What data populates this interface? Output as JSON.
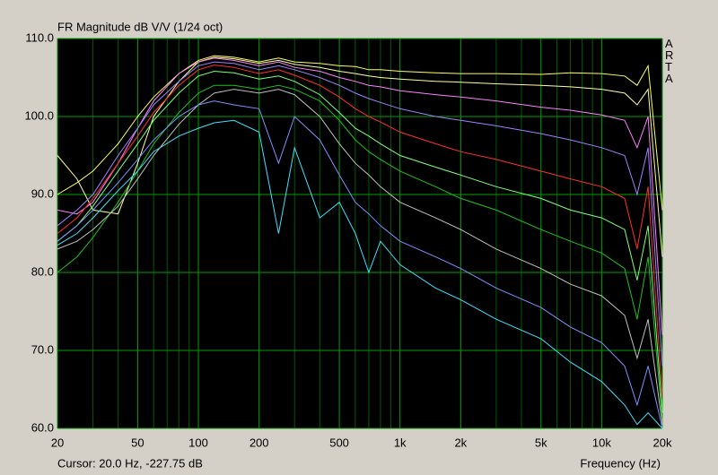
{
  "chart_data": {
    "type": "line",
    "title": "FR Magnitude dB V/V (1/24 oct)",
    "side_label": "ARTA",
    "xlabel": "Frequency (Hz)",
    "cursor": "Cursor: 20.0 Hz, -227.75 dB",
    "xscale": "log",
    "grid": true,
    "xlim": [
      20,
      20000
    ],
    "ylim": [
      60,
      110
    ],
    "xticks": [
      20,
      50,
      100,
      200,
      500,
      {
        "value": 1000,
        "label": "1k"
      },
      {
        "value": 2000,
        "label": "2k"
      },
      {
        "value": 5000,
        "label": "5k"
      },
      {
        "value": 10000,
        "label": "10k"
      },
      {
        "value": 20000,
        "label": "20k"
      }
    ],
    "xminor_ticks": [
      30,
      40,
      60,
      70,
      80,
      90,
      300,
      400,
      600,
      700,
      800,
      900,
      3000,
      4000,
      6000,
      7000,
      8000,
      9000
    ],
    "yticks": [
      {
        "value": 60,
        "label": "60.0"
      },
      {
        "value": 70,
        "label": "70.0"
      },
      {
        "value": 80,
        "label": "80.0"
      },
      {
        "value": 90,
        "label": "90.0"
      },
      {
        "value": 100,
        "label": "100.0"
      },
      {
        "value": 110,
        "label": "110.0"
      }
    ],
    "x": [
      20,
      25,
      30,
      40,
      50,
      60,
      80,
      100,
      120,
      150,
      200,
      250,
      300,
      400,
      500,
      600,
      700,
      800,
      1000,
      1500,
      2000,
      3000,
      5000,
      7000,
      10000,
      13000,
      15000,
      17000,
      20000
    ],
    "series": [
      {
        "color": "#ffff60",
        "values": [
          90,
          91.5,
          93,
          96.5,
          100,
          102.5,
          105.5,
          107.2,
          107.8,
          107.6,
          107,
          107.5,
          107,
          106.8,
          106.5,
          106.4,
          106,
          106,
          105.8,
          105.6,
          105.5,
          105.5,
          105.4,
          105.6,
          105.5,
          105.2,
          104,
          106.5,
          88
        ]
      },
      {
        "color": "#ffffa0",
        "values": [
          95,
          92,
          88,
          87.5,
          94,
          100,
          104.5,
          107,
          107.6,
          107.4,
          106.8,
          107.2,
          106.7,
          106.3,
          105.8,
          105.5,
          105.2,
          105,
          104.8,
          104.5,
          104.4,
          104.2,
          104,
          103.8,
          103.5,
          103,
          101.5,
          103.5,
          82
        ]
      },
      {
        "color": "#ff80ff",
        "values": [
          88,
          87.5,
          89,
          94,
          98.5,
          102,
          105.5,
          107,
          107.5,
          107.2,
          106.5,
          107,
          106.3,
          105.8,
          105,
          104.5,
          104,
          103.8,
          103.3,
          102.8,
          102.5,
          102,
          101.2,
          100.8,
          100.2,
          99.5,
          96,
          100,
          72
        ]
      },
      {
        "color": "#a080ff",
        "values": [
          86,
          88,
          90,
          95,
          98.5,
          101.5,
          104.5,
          106.5,
          107,
          106.8,
          106,
          106.5,
          106,
          105,
          104,
          103,
          102.3,
          101.8,
          101,
          100,
          99.5,
          98.8,
          97.8,
          97,
          96,
          95,
          90,
          96,
          68
        ]
      },
      {
        "color": "#ff3030",
        "values": [
          85,
          87,
          89.5,
          94,
          97.5,
          100.5,
          104,
          106,
          106.6,
          106.3,
          105.5,
          106,
          105.3,
          104,
          102.5,
          101,
          100,
          99.3,
          98,
          96.5,
          95.5,
          94.5,
          93,
          92,
          91,
          89.5,
          83,
          91,
          64
        ]
      },
      {
        "color": "#80ff80",
        "values": [
          84,
          86,
          88.5,
          93,
          96.5,
          99.5,
          103,
          105.2,
          105.8,
          105.6,
          104.8,
          105.2,
          104.5,
          102.8,
          100.5,
          98.5,
          97.5,
          96.5,
          95,
          93.5,
          92.5,
          91,
          89.5,
          88,
          87,
          85.5,
          79,
          86,
          62
        ]
      },
      {
        "color": "#20c020",
        "values": [
          80,
          82,
          84.5,
          89,
          93,
          96.5,
          100.5,
          103,
          104,
          104,
          103.5,
          104,
          103.5,
          102,
          99.5,
          97,
          95.5,
          94.5,
          93,
          91,
          89.5,
          88,
          85.5,
          84,
          82.5,
          80.5,
          74,
          82,
          61
        ]
      },
      {
        "color": "#c0c0c0",
        "values": [
          83,
          84,
          85.5,
          88.5,
          92,
          95,
          99,
          101.5,
          103,
          103.5,
          103,
          103.5,
          102.8,
          100,
          96.5,
          94,
          92.5,
          91,
          89,
          87,
          85.5,
          83,
          80.5,
          78.5,
          77,
          74.5,
          69,
          74,
          60.5
        ]
      },
      {
        "color": "#8090ff",
        "values": [
          84,
          86,
          88,
          91.5,
          94.5,
          97,
          100,
          101.5,
          102,
          101.5,
          101,
          94,
          100,
          97,
          92.5,
          89,
          87.5,
          86,
          84,
          82,
          80.5,
          78,
          75.5,
          73,
          71,
          68,
          63,
          68,
          60
        ]
      },
      {
        "color": "#40e0ff",
        "values": [
          83.5,
          85,
          87,
          90.5,
          93,
          95.5,
          97.5,
          98.5,
          99.2,
          99.5,
          98,
          85,
          96,
          87,
          89,
          85,
          80,
          84,
          81,
          78,
          76.5,
          74,
          71.5,
          68.5,
          66,
          63,
          60.5,
          62,
          60
        ]
      }
    ]
  }
}
